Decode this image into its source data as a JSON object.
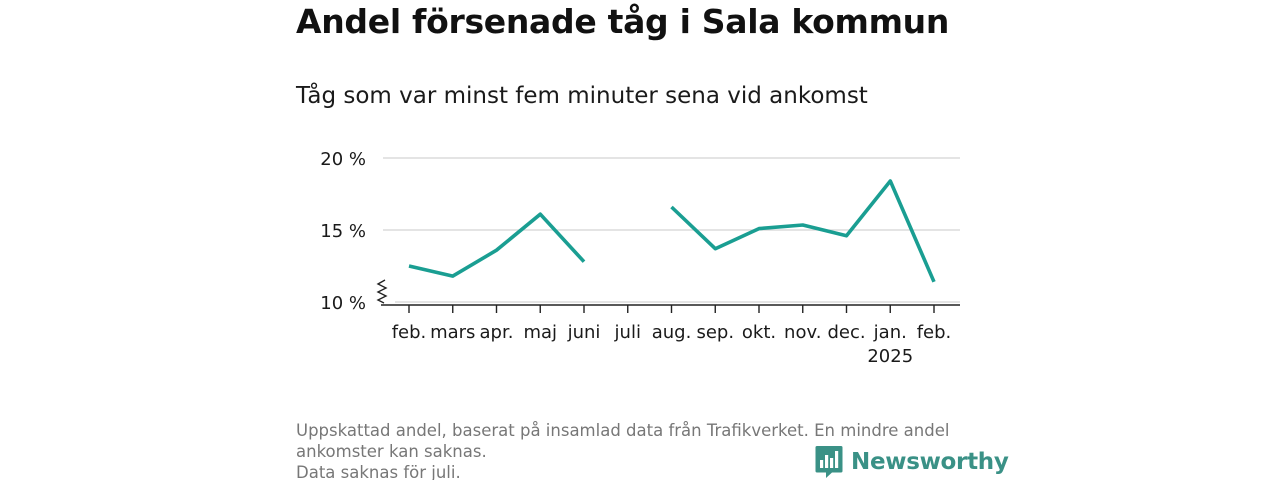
{
  "header": {
    "title": "Andel försenade tåg i Sala kommun",
    "subtitle": "Tåg som var minst fem minuter sena vid ankomst"
  },
  "chart_data": {
    "type": "line",
    "title": "Andel försenade tåg i Sala kommun",
    "subtitle": "Tåg som var minst fem minuter sena vid ankomst",
    "xlabel": "",
    "ylabel": "",
    "categories": [
      "feb.",
      "mars",
      "apr.",
      "maj",
      "juni",
      "juli",
      "aug.",
      "sep.",
      "okt.",
      "nov.",
      "dec.",
      "jan.",
      "feb."
    ],
    "category_sublabels": [
      "",
      "",
      "",
      "",
      "",
      "",
      "",
      "",
      "",
      "",
      "",
      "2025",
      ""
    ],
    "series": [
      {
        "values": [
          12.5,
          11.8,
          13.6,
          16.1,
          12.8,
          null,
          16.6,
          13.7,
          15.1,
          15.35,
          14.6,
          18.4,
          11.4
        ],
        "color": "#1a9e92"
      }
    ],
    "yticks": [
      10,
      15,
      20
    ],
    "ytick_labels": [
      "10 %",
      "15 %",
      "20 %"
    ],
    "ylim": [
      10,
      20
    ],
    "y_axis_break": true,
    "grid": true,
    "legend": "none"
  },
  "footer": {
    "note_line1": "Uppskattad andel, baserat på insamlad data från Trafikverket. En mindre andel",
    "note_line2": "ankomster kan saknas.",
    "note_line3": "Data saknas för juli.",
    "brand": "Newsworthy"
  },
  "colors": {
    "line": "#1a9e92",
    "grid": "#d4d4d4",
    "axis": "#222222",
    "brand": "#3a9186"
  },
  "icons": {
    "logo": "bar-chart-speech-bubble-icon"
  }
}
